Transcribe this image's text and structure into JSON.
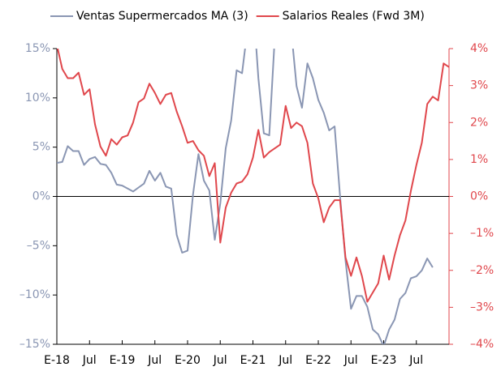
{
  "chart_data": {
    "type": "line",
    "categories": [
      "E-18",
      null,
      null,
      null,
      null,
      null,
      "Jul",
      null,
      null,
      null,
      null,
      null,
      "E-19",
      null,
      null,
      null,
      null,
      null,
      "Jul",
      null,
      null,
      null,
      null,
      null,
      "E-20",
      null,
      null,
      null,
      null,
      null,
      "Jul",
      null,
      null,
      null,
      null,
      null,
      "E-21",
      null,
      null,
      null,
      null,
      null,
      "Jul",
      null,
      null,
      null,
      null,
      null,
      "E-22",
      null,
      null,
      null,
      null,
      null,
      "Jul",
      null,
      null,
      null,
      null,
      null,
      "E-23",
      null,
      null,
      null,
      null,
      null,
      "Jul",
      null,
      null,
      null,
      null,
      null,
      null
    ],
    "series": [
      {
        "name": "Ventas Supermercados MA (3)",
        "color": "#8a96b3",
        "axis": "y",
        "values": [
          3.4,
          3.5,
          5.1,
          4.6,
          4.6,
          3.2,
          3.8,
          4.0,
          3.3,
          3.2,
          2.4,
          1.2,
          1.1,
          0.8,
          0.5,
          0.9,
          1.3,
          2.6,
          1.6,
          2.4,
          1.0,
          0.8,
          -3.9,
          -5.7,
          -5.5,
          0.2,
          4.3,
          1.6,
          0.6,
          -4.4,
          -0.7,
          4.9,
          7.7,
          12.8,
          12.5,
          17,
          20,
          12,
          6.4,
          6.2,
          16,
          19,
          19,
          17,
          11.2,
          9.0,
          13.5,
          12,
          9.8,
          8.5,
          6.7,
          7.1,
          0,
          -6.5,
          -11.4,
          -10.1,
          -10.1,
          -11.2,
          -13.5,
          -14.0,
          -15.2,
          -13.5,
          -12.5,
          -10.4,
          -9.8,
          -8.3,
          -8.1,
          -7.5,
          -6.3,
          -7.2,
          null,
          null,
          null
        ]
      },
      {
        "name": "Salarios Reales (Fwd 3M)",
        "color": "#e0474c",
        "axis": "y2",
        "values": [
          4.1,
          3.45,
          3.2,
          3.2,
          3.35,
          2.75,
          2.9,
          1.95,
          1.35,
          1.1,
          1.55,
          1.4,
          1.6,
          1.65,
          2.0,
          2.55,
          2.65,
          3.05,
          2.8,
          2.5,
          2.75,
          2.8,
          2.3,
          1.9,
          1.45,
          1.5,
          1.25,
          1.1,
          0.55,
          0.9,
          -1.25,
          -0.3,
          0.1,
          0.35,
          0.4,
          0.6,
          1.05,
          1.8,
          1.05,
          1.2,
          1.3,
          1.4,
          2.45,
          1.85,
          2.0,
          1.9,
          1.45,
          0.35,
          -0.05,
          -0.7,
          -0.3,
          -0.1,
          -0.1,
          -1.65,
          -2.15,
          -1.65,
          -2.15,
          -2.85,
          -2.6,
          -2.35,
          -1.6,
          -2.25,
          -1.6,
          -1.05,
          -0.65,
          0.15,
          0.85,
          1.45,
          2.5,
          2.7,
          2.6,
          3.6,
          3.5
        ]
      }
    ],
    "ylim": [
      -15,
      15
    ],
    "yticks": [
      {
        "value": -15,
        "label": "–15%"
      },
      {
        "value": -10,
        "label": "–10%"
      },
      {
        "value": -5,
        "label": "–5%"
      },
      {
        "value": 0,
        "label": "0%"
      },
      {
        "value": 5,
        "label": "5%"
      },
      {
        "value": 10,
        "label": "10%"
      },
      {
        "value": 15,
        "label": "15%"
      }
    ],
    "y2lim": [
      -4,
      4
    ],
    "y2ticks": [
      {
        "value": -4,
        "label": "–4%"
      },
      {
        "value": -3,
        "label": "–3%"
      },
      {
        "value": -2,
        "label": "–2%"
      },
      {
        "value": -1,
        "label": "–1%"
      },
      {
        "value": 0,
        "label": "0%"
      },
      {
        "value": 1,
        "label": "1%"
      },
      {
        "value": 2,
        "label": "2%"
      },
      {
        "value": 3,
        "label": "3%"
      },
      {
        "value": 4,
        "label": "4%"
      }
    ]
  }
}
